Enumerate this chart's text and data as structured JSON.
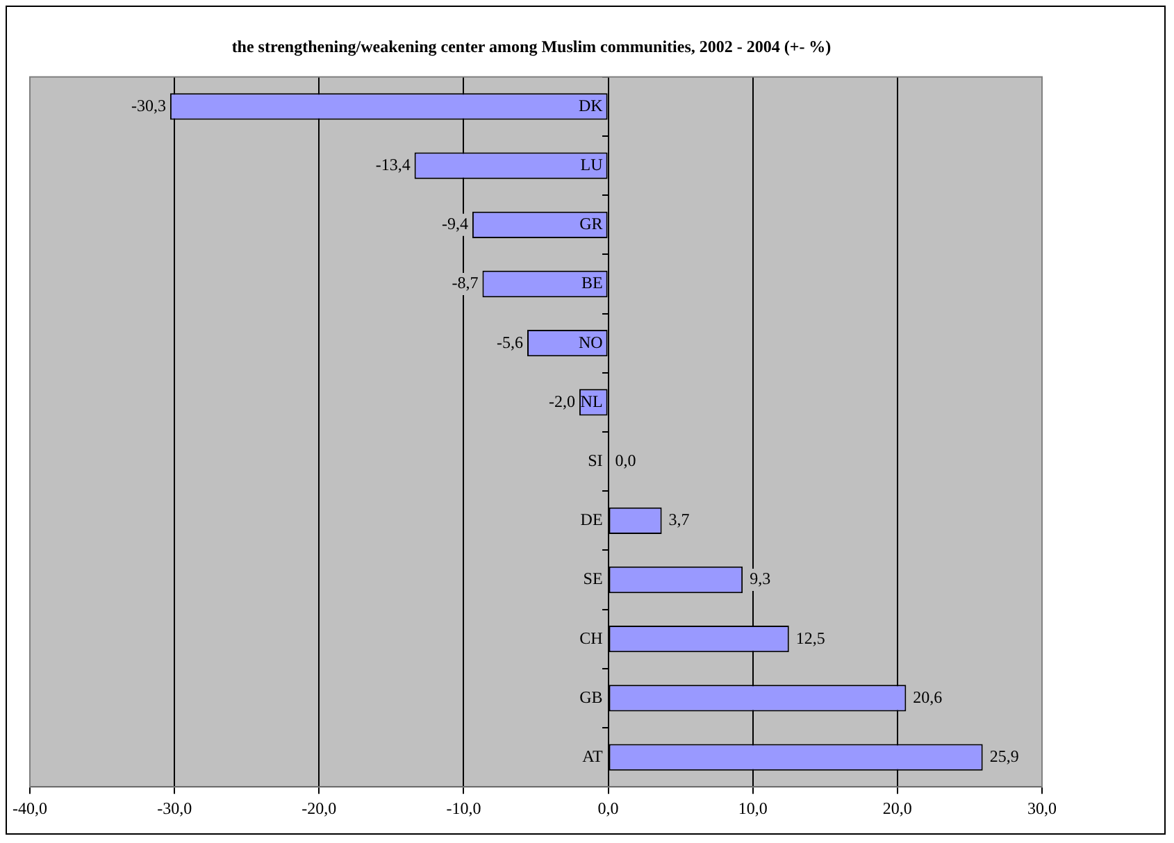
{
  "chart_data": {
    "type": "bar",
    "orientation": "horizontal",
    "title": "the strengthening/weakening center among Muslim communities, 2002 - 2004 (+- %)",
    "categories": [
      "DK",
      "LU",
      "GR",
      "BE",
      "NO",
      "NL",
      "SI",
      "DE",
      "SE",
      "CH",
      "GB",
      "AT"
    ],
    "values": [
      -30.3,
      -13.4,
      -9.4,
      -8.7,
      -5.6,
      -2.0,
      0.0,
      3.7,
      9.3,
      12.5,
      20.6,
      25.9
    ],
    "value_labels": [
      "-30,3",
      "-13,4",
      "-9,4",
      "-8,7",
      "-5,6",
      "-2,0",
      "0,0",
      "3,7",
      "9,3",
      "12,5",
      "20,6",
      "25,9"
    ],
    "color": "#9999ff",
    "xlim": [
      -40,
      30
    ],
    "xticks": [
      {
        "value": -40,
        "label": "-40,0"
      },
      {
        "value": -30,
        "label": "-30,0"
      },
      {
        "value": -20,
        "label": "-20,0"
      },
      {
        "value": -10,
        "label": "-10,0"
      },
      {
        "value": 0,
        "label": "0,0"
      },
      {
        "value": 10,
        "label": "10,0"
      },
      {
        "value": 20,
        "label": "20,0"
      },
      {
        "value": 30,
        "label": "30,0"
      }
    ],
    "grid": "x",
    "legend": false
  }
}
